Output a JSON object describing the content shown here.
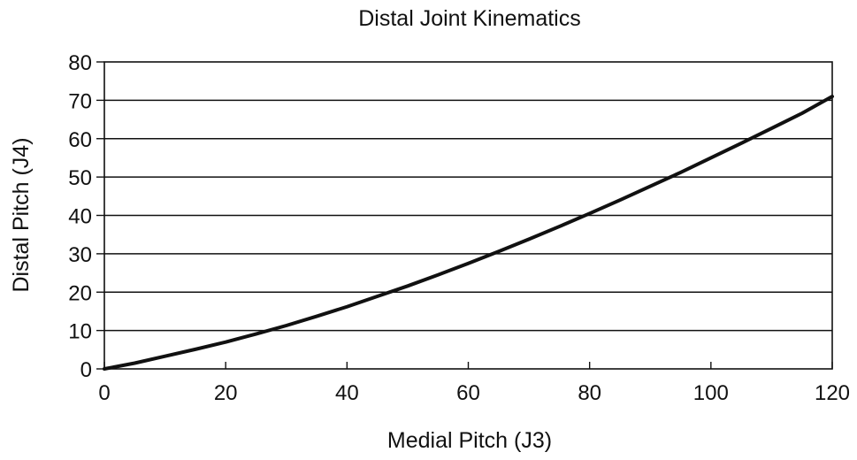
{
  "chart_data": {
    "type": "line",
    "title": "Distal Joint Kinematics",
    "xlabel": "Medial Pitch (J3)",
    "ylabel": "Distal Pitch (J4)",
    "xlim": [
      0,
      120
    ],
    "ylim": [
      0,
      80
    ],
    "xticks": [
      0,
      20,
      40,
      60,
      80,
      100,
      120
    ],
    "yticks": [
      0,
      10,
      20,
      30,
      40,
      50,
      60,
      70,
      80
    ],
    "xtick_labels": [
      "0",
      "20",
      "40",
      "60",
      "80",
      "100",
      "120"
    ],
    "ytick_labels": [
      "0",
      "10",
      "20",
      "30",
      "40",
      "50",
      "60",
      "70",
      "80"
    ],
    "grid": "horizontal",
    "legend": "none",
    "series": [
      {
        "color": "#111111",
        "x": [
          0,
          5,
          10,
          15,
          20,
          25,
          30,
          35,
          40,
          45,
          50,
          55,
          60,
          65,
          70,
          75,
          80,
          85,
          90,
          95,
          100,
          105,
          110,
          115,
          120
        ],
        "y": [
          0,
          1.5,
          3.3,
          5.1,
          7.0,
          9.1,
          11.3,
          13.7,
          16.2,
          18.9,
          21.6,
          24.5,
          27.5,
          30.6,
          33.8,
          37.1,
          40.5,
          44.0,
          47.6,
          51.2,
          55.0,
          58.8,
          62.7,
          66.6,
          71.0
        ]
      }
    ]
  }
}
